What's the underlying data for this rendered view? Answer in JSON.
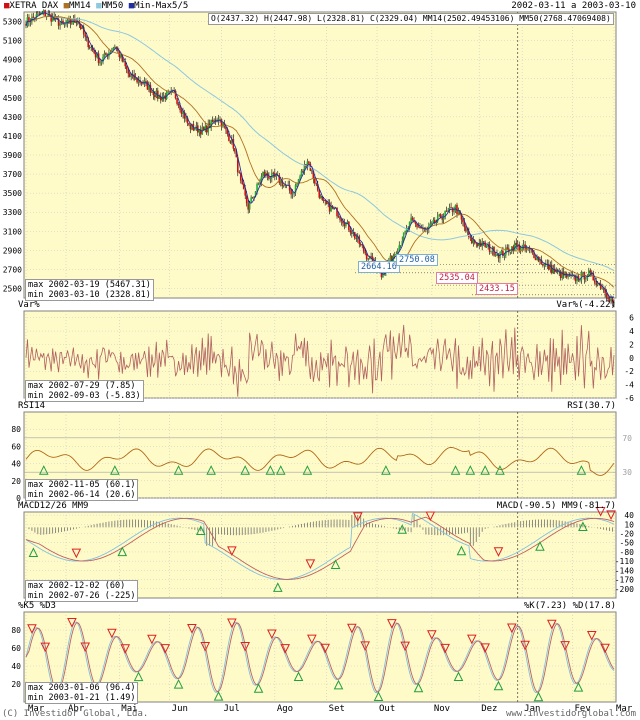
{
  "colors": {
    "panel_bg": "#fffbc8",
    "grid": "#c8c8c8",
    "border": "#808080",
    "candle_up": "#22aa33",
    "candle_down": "#d01010",
    "mm14": "#b07020",
    "mm50": "#8cc8e0",
    "minmax": "#2030a0",
    "var_line": "#b06060",
    "rsi_line": "#b06818",
    "macd_line": "#80c0e0",
    "signal_line": "#c06060",
    "hist": "#707070",
    "k_line": "#80c0e0",
    "d_line": "#c06060",
    "buy_marker": "#20a040",
    "sell_marker": "#e02020"
  },
  "header": {
    "legend": [
      {
        "label": "XETRA DAX",
        "color": "#d01010"
      },
      {
        "label": "MM14",
        "color": "#b07020"
      },
      {
        "label": "MM50",
        "color": "#8cc8e0"
      },
      {
        "label": "Min-Max5/5",
        "color": "#2030a0"
      }
    ],
    "date_range": "2002-03-11 a 2003-03-10",
    "ohlc": "O(2437.32) H(2447.98) L(2328.81) C(2329.04) MM14(2502.49453106) MM50(2768.47069408)"
  },
  "footer": {
    "copyright": "(C) Investidor Global, Lda.",
    "site": "www.investidorglobal.com"
  },
  "chart_data": [
    {
      "type": "candlestick",
      "title": "XETRA DAX",
      "x_labels": [
        "Mar",
        "Abr",
        "Mai",
        "Jun",
        "Jul",
        "Ago",
        "Set",
        "Out",
        "Nov",
        "Dez",
        "Jan",
        "Fev",
        "Mar"
      ],
      "ylim": [
        2400,
        5400
      ],
      "y_ticks": [
        2500,
        2700,
        2900,
        3100,
        3300,
        3500,
        3700,
        3900,
        4100,
        4300,
        4500,
        4700,
        4900,
        5100,
        5300
      ],
      "close_approx": [
        [
          0,
          5300
        ],
        [
          12,
          5390
        ],
        [
          25,
          5260
        ],
        [
          35,
          5320
        ],
        [
          40,
          5120
        ],
        [
          50,
          4880
        ],
        [
          60,
          5050
        ],
        [
          70,
          4720
        ],
        [
          80,
          4650
        ],
        [
          90,
          4500
        ],
        [
          100,
          4550
        ],
        [
          110,
          4200
        ],
        [
          120,
          4150
        ],
        [
          130,
          4300
        ],
        [
          140,
          4000
        ],
        [
          145,
          3600
        ],
        [
          150,
          3350
        ],
        [
          160,
          3700
        ],
        [
          170,
          3650
        ],
        [
          180,
          3500
        ],
        [
          190,
          3850
        ],
        [
          200,
          3400
        ],
        [
          210,
          3300
        ],
        [
          220,
          3100
        ],
        [
          230,
          2850
        ],
        [
          240,
          2650
        ],
        [
          250,
          2900
        ],
        [
          260,
          3200
        ],
        [
          270,
          3100
        ],
        [
          280,
          3250
        ],
        [
          290,
          3350
        ],
        [
          300,
          3000
        ],
        [
          310,
          2950
        ],
        [
          320,
          2850
        ],
        [
          330,
          2950
        ],
        [
          340,
          2900
        ],
        [
          350,
          2750
        ],
        [
          360,
          2650
        ],
        [
          370,
          2600
        ],
        [
          380,
          2650
        ],
        [
          390,
          2500
        ],
        [
          397,
          2330
        ]
      ],
      "annotations": [
        {
          "text": "2664.16",
          "color": "#2060a0"
        },
        {
          "text": "2750.08",
          "color": "#2060a0"
        },
        {
          "text": "2535.04",
          "color": "#c02040"
        },
        {
          "text": "2433.15",
          "color": "#c02040"
        }
      ],
      "stats": {
        "max": "max 2002-03-19 (5467.31)",
        "min": "min 2003-03-10 (2328.81)"
      }
    },
    {
      "type": "line",
      "title": "Var%",
      "value_label": "Var%(-4.22)",
      "ylim": [
        -6,
        7
      ],
      "y_ticks": [
        6,
        4,
        2,
        0,
        -2,
        -4,
        -6
      ],
      "stats": {
        "max": "max 2002-07-29 (7.85)",
        "min": "min 2002-09-03 (-5.83)"
      }
    },
    {
      "type": "line",
      "title": "RSI14",
      "value_label": "RSI(30.7)",
      "ylim": [
        0,
        100
      ],
      "y_ticks": [
        80,
        60,
        40,
        20,
        0
      ],
      "levels": [
        70,
        30
      ],
      "stats": {
        "max": "max 2002-11-05 (60.1)",
        "min": "min 2002-06-14 (20.6)"
      }
    },
    {
      "type": "line",
      "title": "MACD12/26 MM9",
      "value_label": "MACD(-90.5) MM9(-81.7)",
      "ylim": [
        -230,
        50
      ],
      "y_ticks": [
        40,
        10,
        -20,
        -50,
        -80,
        -110,
        -140,
        -170,
        -200
      ],
      "stats": {
        "max": "max 2002-12-02 (60)",
        "min": "min 2002-07-26 (-225)"
      }
    },
    {
      "type": "line",
      "title": "%K5 %D3",
      "value_label": "%K(7.23) %D(17.8)",
      "ylim": [
        0,
        100
      ],
      "y_ticks": [
        80,
        60,
        40,
        20
      ],
      "stats": {
        "max": "max 2003-01-06 (96.4)",
        "min": "min 2003-01-21 (1.49)"
      }
    }
  ]
}
